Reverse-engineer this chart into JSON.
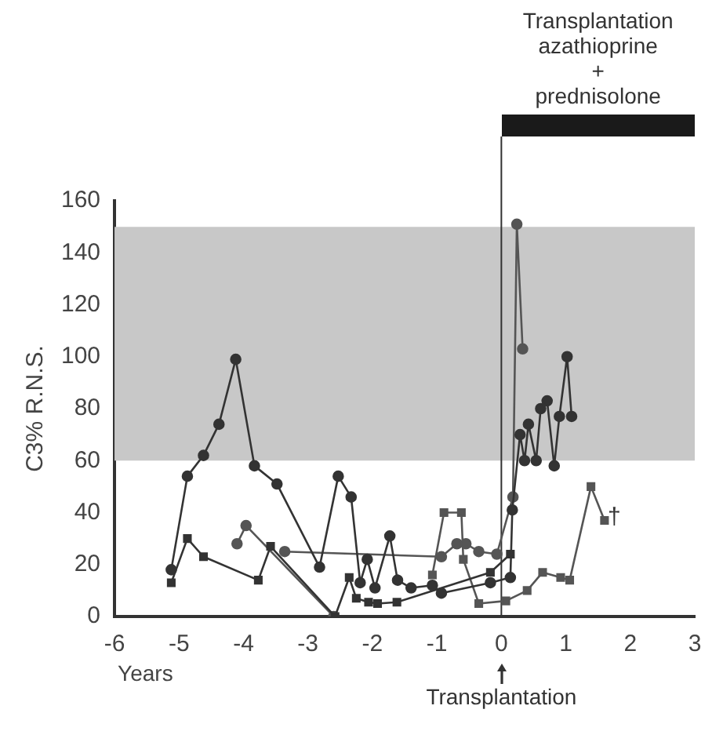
{
  "chart_data": {
    "type": "line",
    "xlabel": "Years",
    "ylabel": "C3% R.N.S.",
    "xlim": [
      -6,
      3
    ],
    "xticks": [
      -6,
      -5,
      -4,
      -3,
      -2,
      -1,
      0,
      1,
      2,
      3
    ],
    "ylim": [
      0,
      160
    ],
    "yticks": [
      0,
      20,
      40,
      60,
      80,
      100,
      120,
      140,
      160
    ],
    "grid": false,
    "legend": false,
    "line_style": "solid",
    "series": [
      {
        "color": "#333333",
        "marker": "circle",
        "x": [
          -5.12,
          -4.87,
          -4.62,
          -4.38,
          -4.12,
          -3.83,
          -3.48,
          -2.82,
          -2.53,
          -2.33,
          -2.19,
          -2.08,
          -1.96,
          -1.73,
          -1.61,
          -1.4,
          -1.07,
          -0.93,
          -0.17,
          0.14,
          0.17,
          0.29,
          0.36,
          0.42,
          0.54,
          0.61,
          0.71,
          0.82,
          0.9,
          1.02,
          1.09
        ],
        "values": [
          18,
          54,
          62,
          74,
          99,
          58,
          51,
          19,
          54,
          46,
          13,
          22,
          11,
          31,
          14,
          11,
          12,
          9,
          13,
          15,
          41,
          70,
          60,
          74,
          60,
          80,
          83,
          58,
          77,
          100,
          77
        ]
      },
      {
        "color": "#333333",
        "marker": "square",
        "x": [
          -5.12,
          -4.87,
          -4.62,
          -3.77,
          -3.58,
          -2.58,
          -2.36,
          -2.25,
          -2.06,
          -1.92,
          -1.62,
          -0.17,
          0.14
        ],
        "values": [
          13,
          30,
          23,
          14,
          27,
          0,
          15,
          7,
          5.5,
          5,
          5.5,
          17,
          24
        ]
      },
      {
        "color": "#555555",
        "marker": "circle",
        "x": [
          -4.1,
          -3.96,
          -2.6
        ],
        "values": [
          28,
          35,
          0
        ]
      },
      {
        "color": "#555555",
        "marker": "circle",
        "x": [
          -3.36,
          -0.93,
          -0.69,
          -0.55,
          -0.35,
          -0.07,
          0.18,
          0.24,
          0.33
        ],
        "values": [
          25,
          23,
          28,
          28,
          25,
          24,
          46,
          151,
          103
        ]
      },
      {
        "color": "#555555",
        "marker": "square",
        "x": [
          -1.07,
          -0.89,
          -0.62,
          -0.59,
          -0.35,
          0.07,
          0.4,
          0.64,
          0.92,
          1.06,
          1.39,
          1.6
        ],
        "values": [
          16,
          40,
          40,
          22,
          5,
          6,
          10,
          17,
          15,
          14,
          50,
          37
        ]
      }
    ],
    "bands": [
      {
        "axis": "y",
        "from": 60,
        "to": 150,
        "color": "#c8c8c8"
      }
    ],
    "ref_lines": [
      {
        "axis": "x",
        "value": 0,
        "label": "Transplantation",
        "color": "#333333"
      }
    ],
    "annotations": [
      "Transplantation\nazathioprine\n+\nprednisolone",
      {
        "text": "†",
        "x": 1.75,
        "y": 38
      }
    ]
  }
}
